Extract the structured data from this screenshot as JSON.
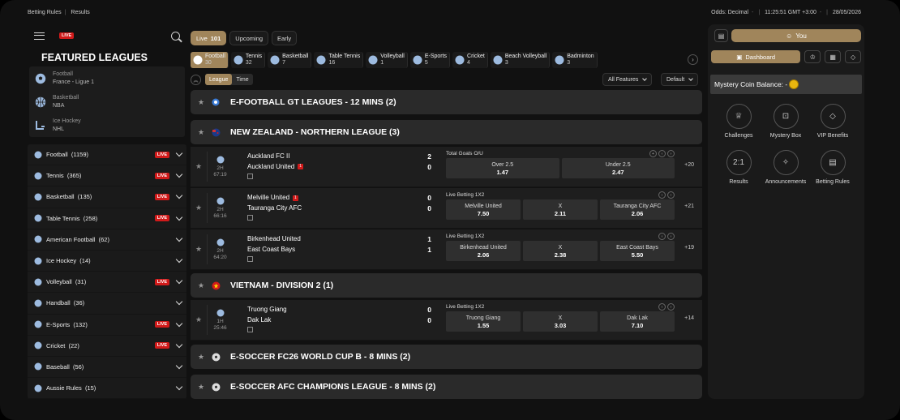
{
  "topbar": {
    "betting_rules": "Betting Rules",
    "results": "Results",
    "odds": "Odds: Decimal",
    "time": "11:25:51 GMT +3:00",
    "date": "28/05/2026"
  },
  "sidebar": {
    "live_badge": "LIVE",
    "featured_title": "FEATURED LEAGUES",
    "featured": [
      {
        "sport": "Football",
        "league": "France - Ligue 1",
        "icon": "football-icon"
      },
      {
        "sport": "Basketball",
        "league": "NBA",
        "icon": "basketball-icon"
      },
      {
        "sport": "Ice Hockey",
        "league": "NHL",
        "icon": "ice-hockey-icon"
      }
    ],
    "sports": [
      {
        "label": "Football",
        "count": "(1159)",
        "live": "LIVE"
      },
      {
        "label": "Tennis",
        "count": "(365)",
        "live": "LIVE"
      },
      {
        "label": "Basketball",
        "count": "(135)",
        "live": "LIVE"
      },
      {
        "label": "Table Tennis",
        "count": "(258)",
        "live": "LIVE"
      },
      {
        "label": "American Football",
        "count": "(62)",
        "live": ""
      },
      {
        "label": "Ice Hockey",
        "count": "(14)",
        "live": ""
      },
      {
        "label": "Volleyball",
        "count": "(31)",
        "live": "LIVE"
      },
      {
        "label": "Handball",
        "count": "(36)",
        "live": ""
      },
      {
        "label": "E-Sports",
        "count": "(132)",
        "live": "LIVE"
      },
      {
        "label": "Cricket",
        "count": "(22)",
        "live": "LIVE"
      },
      {
        "label": "Baseball",
        "count": "(56)",
        "live": ""
      },
      {
        "label": "Aussie Rules",
        "count": "(15)",
        "live": ""
      }
    ]
  },
  "tabs": [
    {
      "label": "Live",
      "count": "101"
    },
    {
      "label": "Upcoming",
      "count": ""
    },
    {
      "label": "Early",
      "count": ""
    }
  ],
  "sportbar": [
    {
      "name": "Football",
      "count": "30"
    },
    {
      "name": "Tennis",
      "count": "32"
    },
    {
      "name": "Basketball",
      "count": "7"
    },
    {
      "name": "Table Tennis",
      "count": "16"
    },
    {
      "name": "Volleyball",
      "count": "1"
    },
    {
      "name": "E-Sports",
      "count": "5"
    },
    {
      "name": "Cricket",
      "count": "4"
    },
    {
      "name": "Beach Volleyball",
      "count": "3"
    },
    {
      "name": "Badminton",
      "count": "3"
    }
  ],
  "filter": {
    "league": "League",
    "time": "Time",
    "features": "All Features",
    "default": "Default"
  },
  "leagues": [
    {
      "name": "E-FOOTBALL GT LEAGUES - 12 MINS (2)"
    },
    {
      "name": "NEW ZEALAND - NORTHERN LEAGUE (3)"
    },
    {
      "name": "VIETNAM - DIVISION 2 (1)"
    },
    {
      "name": "E-SOCCER FC26 WORLD CUP B - 8 MINS (2)"
    },
    {
      "name": "E-SOCCER AFC CHAMPIONS LEAGUE - 8 MINS (2)"
    }
  ],
  "matches": [
    {
      "period": "2H",
      "clock": "67:19",
      "home": "Auckland FC II",
      "away": "Auckland United",
      "home_score": "2",
      "away_score": "0",
      "red_home": "",
      "red_away": "1",
      "market": "Total Goals O/U",
      "odds": [
        {
          "a": "Over  2.5",
          "b": "1.47"
        },
        {
          "a": "Under  2.5",
          "b": "2.47"
        }
      ],
      "more": "+20"
    },
    {
      "period": "2H",
      "clock": "66:16",
      "home": "Melville United",
      "away": "Tauranga City AFC",
      "home_score": "0",
      "away_score": "0",
      "red_home": "1",
      "red_away": "",
      "market": "Live Betting 1X2",
      "odds": [
        {
          "a": "Melville United",
          "b": "7.50"
        },
        {
          "a": "X",
          "b": "2.11"
        },
        {
          "a": "Tauranga City AFC",
          "b": "2.06"
        }
      ],
      "more": "+21"
    },
    {
      "period": "2H",
      "clock": "64:20",
      "home": "Birkenhead United",
      "away": "East Coast Bays",
      "home_score": "1",
      "away_score": "1",
      "red_home": "",
      "red_away": "",
      "market": "Live Betting 1X2",
      "odds": [
        {
          "a": "Birkenhead United",
          "b": "2.06"
        },
        {
          "a": "X",
          "b": "2.38"
        },
        {
          "a": "East Coast Bays",
          "b": "5.50"
        }
      ],
      "more": "+19"
    },
    {
      "period": "1H",
      "clock": "25:46",
      "home": "Truong Giang",
      "away": "Dak Lak",
      "home_score": "0",
      "away_score": "0",
      "red_home": "",
      "red_away": "",
      "market": "Live Betting 1X2",
      "odds": [
        {
          "a": "Truong Giang",
          "b": "1.55"
        },
        {
          "a": "X",
          "b": "3.03"
        },
        {
          "a": "Dak Lak",
          "b": "7.10"
        }
      ],
      "more": "+14"
    }
  ],
  "right": {
    "you": "You",
    "dashboard": "Dashboard",
    "mystery_coin": "Mystery Coin Balance: -",
    "grid": [
      {
        "label": "Challenges",
        "icon": "trophy-icon"
      },
      {
        "label": "Mystery Box",
        "icon": "mystery-box-icon"
      },
      {
        "label": "VIP Benefits",
        "icon": "diamond-icon"
      },
      {
        "label": "Results",
        "icon": "results-icon"
      },
      {
        "label": "Announcements",
        "icon": "megaphone-icon"
      },
      {
        "label": "Betting Rules",
        "icon": "rules-icon"
      }
    ]
  },
  "colors": {
    "accent": "#a0855b",
    "live": "#d11a1a",
    "panel": "#1a1a1a",
    "league_bar": "#2a2a2a"
  }
}
